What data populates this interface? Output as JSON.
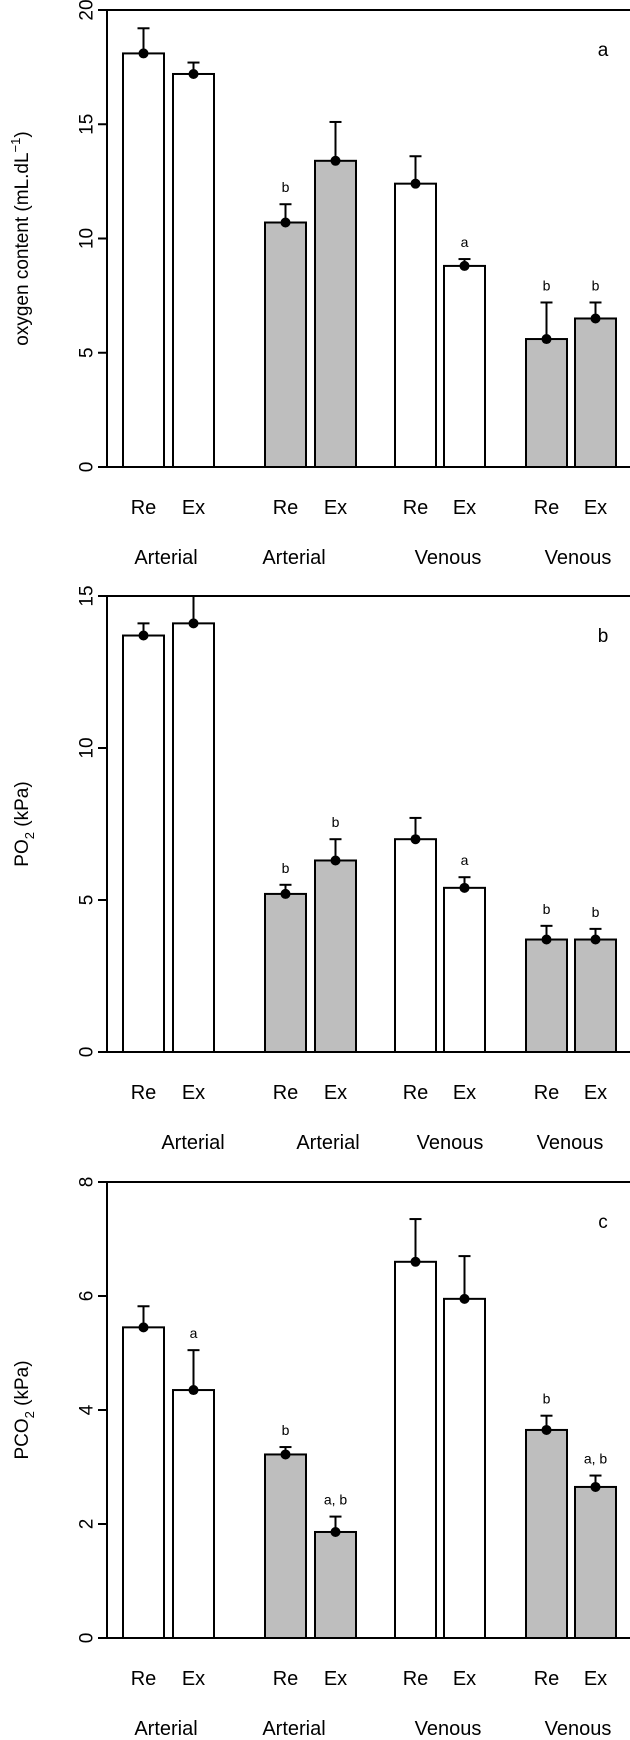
{
  "colors": {
    "white_bar": "#ffffff",
    "grey_bar": "#bebebe",
    "stroke": "#000000"
  },
  "chart_data": [
    {
      "type": "bar",
      "panel": "a",
      "ylabel": "oxygen content (mL.dL⁻¹)",
      "ylabel_parts": [
        "oxygen content (mL.dL",
        "−1",
        ")"
      ],
      "ylim": [
        0,
        20
      ],
      "yticks": [
        0,
        5,
        10,
        15,
        20
      ],
      "grid": false,
      "categories": [
        "Re",
        "Ex",
        "Re",
        "Ex",
        "Re",
        "Ex",
        "Re",
        "Ex"
      ],
      "groups": [
        "Arterial",
        "Arterial",
        "Venous",
        "Venous"
      ],
      "fills": [
        "white",
        "white",
        "grey",
        "grey",
        "white",
        "white",
        "grey",
        "grey"
      ],
      "values": [
        18.1,
        17.2,
        10.7,
        13.4,
        12.4,
        8.8,
        5.6,
        6.5
      ],
      "errors": [
        1.1,
        0.5,
        0.8,
        1.7,
        1.2,
        0.3,
        1.6,
        0.7
      ],
      "annotations": [
        "",
        "",
        "b",
        "",
        "",
        "a",
        "b",
        "b"
      ]
    },
    {
      "type": "bar",
      "panel": "b",
      "ylabel": "PO₂ (kPa)",
      "ylabel_parts": [
        "PO",
        "2",
        " (kPa)"
      ],
      "ylim": [
        0,
        15
      ],
      "yticks": [
        0,
        5,
        10,
        15
      ],
      "grid": false,
      "categories": [
        "Re",
        "Ex",
        "Re",
        "Ex",
        "Re",
        "Ex",
        "Re",
        "Ex"
      ],
      "groups": [
        "Arterial",
        "Arterial",
        "Venous",
        "Venous"
      ],
      "fills": [
        "white",
        "white",
        "grey",
        "grey",
        "white",
        "white",
        "grey",
        "grey"
      ],
      "values": [
        13.7,
        14.1,
        5.2,
        6.3,
        7.0,
        5.4,
        3.7,
        3.7
      ],
      "errors": [
        0.4,
        0.9,
        0.3,
        0.7,
        0.7,
        0.35,
        0.45,
        0.35
      ],
      "annotations": [
        "",
        "",
        "b",
        "b",
        "",
        "a",
        "b",
        "b"
      ]
    },
    {
      "type": "bar",
      "panel": "c",
      "ylabel": "PCO₂ (kPa)",
      "ylabel_parts": [
        "PCO",
        "2",
        " (kPa)"
      ],
      "ylim": [
        0,
        8
      ],
      "yticks": [
        0,
        2,
        4,
        6,
        8
      ],
      "grid": false,
      "categories": [
        "Re",
        "Ex",
        "Re",
        "Ex",
        "Re",
        "Ex",
        "Re",
        "Ex"
      ],
      "groups": [
        "Arterial",
        "Arterial",
        "Venous",
        "Venous"
      ],
      "fills": [
        "white",
        "white",
        "grey",
        "grey",
        "white",
        "white",
        "grey",
        "grey"
      ],
      "values": [
        5.45,
        4.35,
        3.22,
        1.86,
        6.6,
        5.95,
        3.65,
        2.65
      ],
      "errors": [
        0.37,
        0.7,
        0.13,
        0.27,
        0.75,
        0.75,
        0.25,
        0.2
      ],
      "annotations": [
        "",
        "a",
        "b",
        "a, b",
        "",
        "",
        "b",
        "a, b"
      ]
    }
  ]
}
